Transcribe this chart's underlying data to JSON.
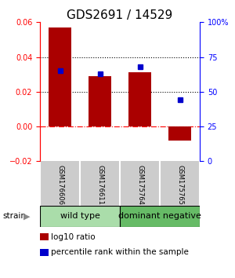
{
  "title": "GDS2691 / 14529",
  "samples": [
    "GSM176606",
    "GSM176611",
    "GSM175764",
    "GSM175765"
  ],
  "log10_ratio": [
    0.057,
    0.029,
    0.031,
    -0.008
  ],
  "percentile_rank": [
    65,
    63,
    68,
    44
  ],
  "groups": [
    {
      "label": "wild type",
      "samples": [
        0,
        1
      ],
      "color": "#aaddaa"
    },
    {
      "label": "dominant negative",
      "samples": [
        2,
        3
      ],
      "color": "#66bb66"
    }
  ],
  "bar_color": "#aa0000",
  "dot_color": "#0000cc",
  "ylim_left": [
    -0.02,
    0.06
  ],
  "ylim_right": [
    0,
    100
  ],
  "yticks_left": [
    -0.02,
    0,
    0.02,
    0.04,
    0.06
  ],
  "yticks_right": [
    0,
    25,
    50,
    75,
    100
  ],
  "ytick_labels_right": [
    "0",
    "25",
    "50",
    "75",
    "100%"
  ],
  "hline_dotted": [
    0.02,
    0.04
  ],
  "bar_width": 0.55,
  "label_area_color": "#cccccc",
  "title_fontsize": 11,
  "tick_fontsize": 7,
  "sample_fontsize": 6,
  "legend_fontsize": 7.5,
  "group_fontsize": 8
}
